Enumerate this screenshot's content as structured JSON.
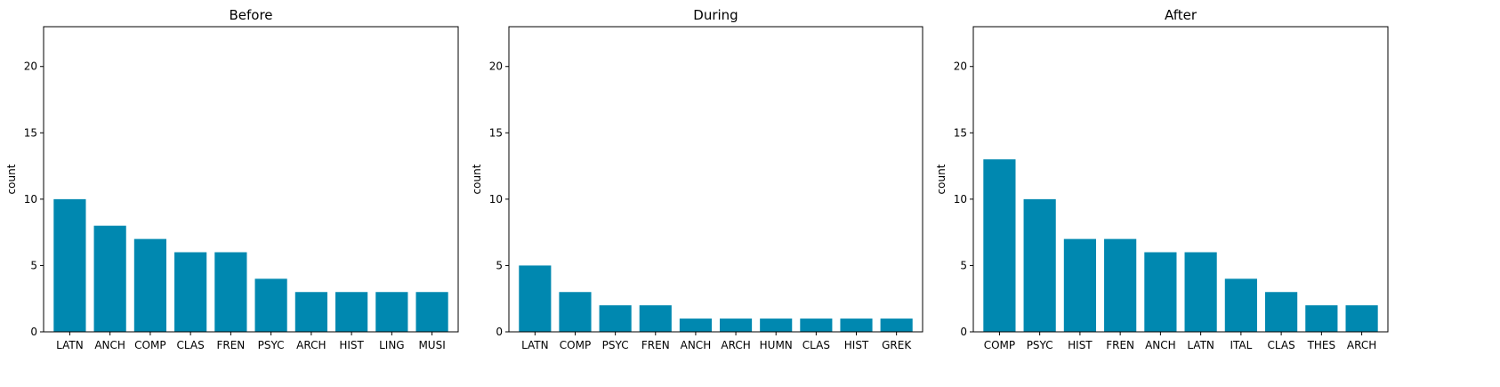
{
  "chart_data": [
    {
      "type": "bar",
      "title": "Before",
      "ylabel": "count",
      "ylim": [
        0,
        23
      ],
      "yticks": [
        0,
        5,
        10,
        15,
        20
      ],
      "color": "#0088b0",
      "categories": [
        "LATN",
        "ANCH",
        "COMP",
        "CLAS",
        "FREN",
        "PSYC",
        "ARCH",
        "HIST",
        "LING",
        "MUSI"
      ],
      "values": [
        10,
        8,
        7,
        6,
        6,
        4,
        3,
        3,
        3,
        3
      ]
    },
    {
      "type": "bar",
      "title": "During",
      "ylabel": "count",
      "ylim": [
        0,
        23
      ],
      "yticks": [
        0,
        5,
        10,
        15,
        20
      ],
      "color": "#0088b0",
      "categories": [
        "LATN",
        "COMP",
        "PSYC",
        "FREN",
        "ANCH",
        "ARCH",
        "HUMN",
        "CLAS",
        "HIST",
        "GREK"
      ],
      "values": [
        5,
        3,
        2,
        2,
        1,
        1,
        1,
        1,
        1,
        1
      ]
    },
    {
      "type": "bar",
      "title": "After",
      "ylabel": "count",
      "ylim": [
        0,
        23
      ],
      "yticks": [
        0,
        5,
        10,
        15,
        20
      ],
      "color": "#0088b0",
      "categories": [
        "COMP",
        "PSYC",
        "HIST",
        "FREN",
        "ANCH",
        "LATN",
        "ITAL",
        "CLAS",
        "THES",
        "ARCH"
      ],
      "values": [
        13,
        10,
        7,
        7,
        6,
        6,
        4,
        3,
        2,
        2
      ]
    }
  ]
}
